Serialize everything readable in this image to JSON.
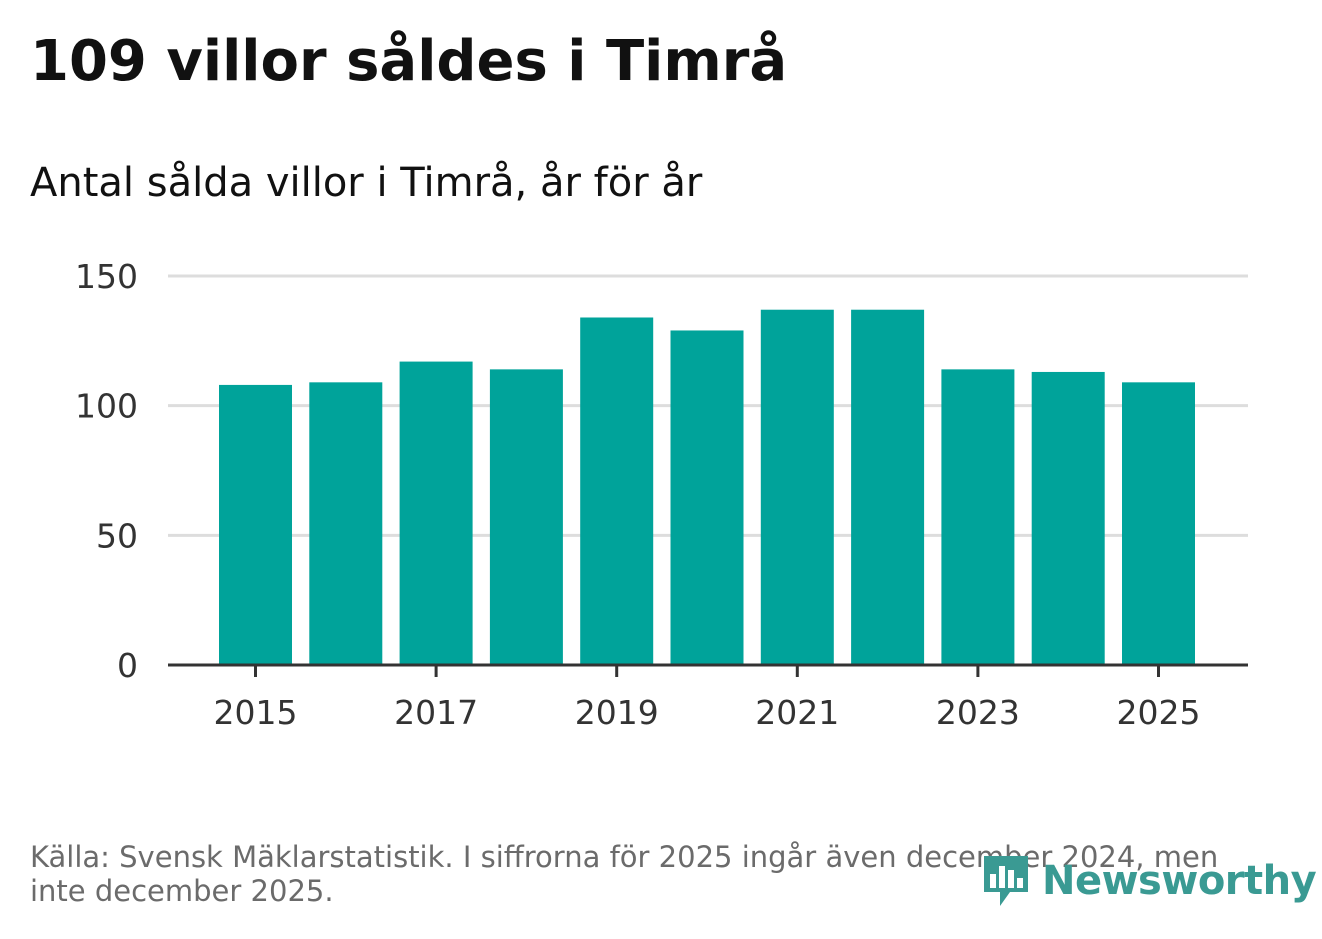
{
  "title": "109 villor såldes i Timrå",
  "subtitle": "Antal sålda villor i Timrå, år för år",
  "source": "Källa: Svensk Mäklarstatistik. I siffrorna för 2025 ingår även december 2024, men inte december 2025.",
  "logo": {
    "text": "Newsworthy",
    "icon": "chart-bubble-icon"
  },
  "colors": {
    "bar": "#00a39a",
    "grid": "#dddddd",
    "axis": "#333333",
    "text": "#333333",
    "logo": "#3a9a93"
  },
  "chart_data": {
    "type": "bar",
    "title": "109 villor såldes i Timrå",
    "subtitle": "Antal sålda villor i Timrå, år för år",
    "xlabel": "",
    "ylabel": "",
    "categories": [
      "2015",
      "2016",
      "2017",
      "2018",
      "2019",
      "2020",
      "2021",
      "2022",
      "2023",
      "2024",
      "2025"
    ],
    "values": [
      108,
      109,
      117,
      114,
      134,
      129,
      137,
      137,
      114,
      113,
      109
    ],
    "ylim": [
      0,
      150
    ],
    "yticks": [
      0,
      50,
      100,
      150
    ],
    "xtick_labels": [
      "2015",
      "2017",
      "2019",
      "2021",
      "2023",
      "2025"
    ],
    "grid": true,
    "legend": "none"
  }
}
